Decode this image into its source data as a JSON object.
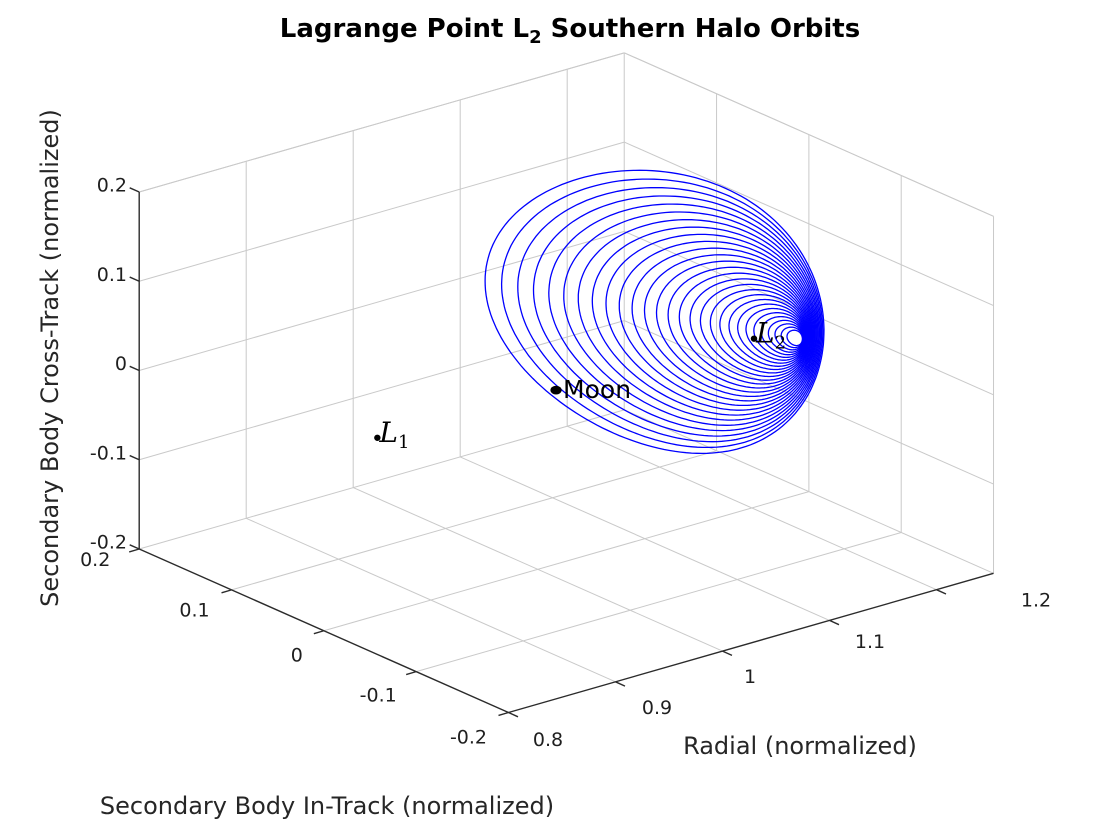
{
  "title": {
    "pre": "Lagrange Point L",
    "sub": "2",
    "post": " Southern Halo Orbits"
  },
  "chart_data": {
    "type": "line3d",
    "title": "Lagrange Point L_2 Southern Halo Orbits",
    "grid": true,
    "background": "#ffffff",
    "axes": {
      "x": {
        "label": "Radial (normalized)",
        "range": [
          0.8,
          1.2533
        ],
        "ticks": [
          0.8,
          0.9,
          1.0,
          1.1,
          1.2
        ],
        "tick_labels": [
          "0.8",
          "0.9",
          "1",
          "1.1",
          "1.2"
        ]
      },
      "y": {
        "label": "Secondary Body In-Track (normalized)",
        "range": [
          -0.2,
          0.2
        ],
        "ticks": [
          -0.2,
          -0.1,
          0.0,
          0.1,
          0.2
        ],
        "tick_labels": [
          "-0.2",
          "-0.1",
          "0",
          "0.1",
          "0.2"
        ]
      },
      "z": {
        "label": "Secondary Body Cross-Track (normalized)",
        "range": [
          -0.2,
          0.2
        ],
        "ticks": [
          -0.2,
          -0.1,
          0.0,
          0.1,
          0.2
        ],
        "tick_labels": [
          "-0.2",
          "-0.1",
          "0",
          "0.1",
          "0.2"
        ]
      }
    },
    "series": {
      "name": "L2 southern halo orbit family",
      "color": "#0000FF",
      "orbit_count": 28,
      "points_per_orbit": 180,
      "family": {
        "comment": "each orbit k: t=k/27, lambda=0.5*t*(1+t); param(lambda)=base+slope*lambda; curve: x=xc-Ax*cos(th)+0.15*Ax*cos(2th); y=Ay*sin(th); z=z0-Az*cos(th)",
        "xc": {
          "base": 1.2403,
          "slope": -0.1252
        },
        "z0": {
          "base": -0.0234,
          "slope": 0.071
        },
        "Ax": {
          "base": 0.002,
          "slope": 0.05
        },
        "Ay": {
          "base": 0.008,
          "slope": 0.165
        },
        "Az": {
          "base": 0.0071,
          "slope": 0.1123
        },
        "x_second_harmonic": 0.15
      }
    },
    "points": [
      {
        "id": "L1",
        "label_pre": "L",
        "label_sub": "1",
        "x": 0.85,
        "y": 0.0,
        "z": -0.001,
        "marker": "dot",
        "color": "#000000"
      },
      {
        "id": "Moon",
        "label": "Moon",
        "x": 1.017,
        "y": 0.0,
        "z": -0.005,
        "marker": "dot",
        "color": "#000000"
      },
      {
        "id": "L2",
        "label_pre": "L",
        "label_sub": "2",
        "x": 1.202,
        "y": 0.0,
        "z": -0.011,
        "marker": "dot",
        "color": "#000000"
      }
    ],
    "colors": {
      "orbit": "#0000FF",
      "axis": "#2b2b2b",
      "grid": "#c9c9c9",
      "text": "#1f1f1f",
      "marker": "#000000"
    }
  }
}
